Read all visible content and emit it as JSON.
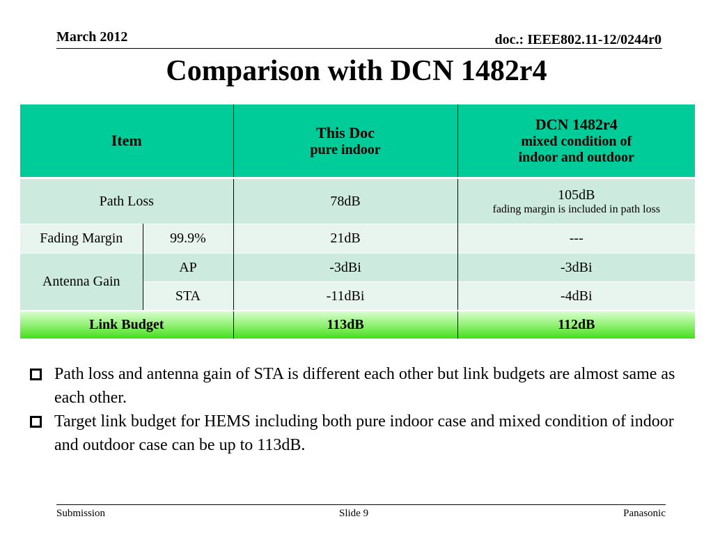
{
  "header": {
    "date": "March 2012",
    "doc": "doc.: IEEE802.11-12/0244r0"
  },
  "title": "Comparison with DCN 1482r4",
  "table": {
    "head": {
      "item": "Item",
      "col1_title": "This Doc",
      "col1_sub": "pure indoor",
      "col2_title": "DCN 1482r4",
      "col2_sub1": "mixed condition of",
      "col2_sub2": "indoor and outdoor"
    },
    "path_loss": {
      "label": "Path Loss",
      "this_doc": "78dB",
      "dcn": "105dB",
      "dcn_note": "fading margin is included in path loss"
    },
    "fading_margin": {
      "label": "Fading Margin",
      "param": "99.9%",
      "this_doc": "21dB",
      "dcn": "---"
    },
    "antenna_gain": {
      "label": "Antenna Gain",
      "ap_label": "AP",
      "ap_this_doc": "-3dBi",
      "ap_dcn": "-3dBi",
      "sta_label": "STA",
      "sta_this_doc": "-11dBi",
      "sta_dcn": "-4dBi"
    },
    "link_budget": {
      "label": "Link Budget",
      "this_doc": "113dB",
      "dcn": "112dB"
    }
  },
  "bullets": [
    "Path loss and antenna gain of STA is different each other but link budgets are almost same as each other.",
    "Target link budget for HEMS including both pure indoor case and mixed condition of indoor and outdoor case can be up to 113dB."
  ],
  "footer": {
    "left": "Submission",
    "center": "Slide 9",
    "right": "Panasonic"
  }
}
